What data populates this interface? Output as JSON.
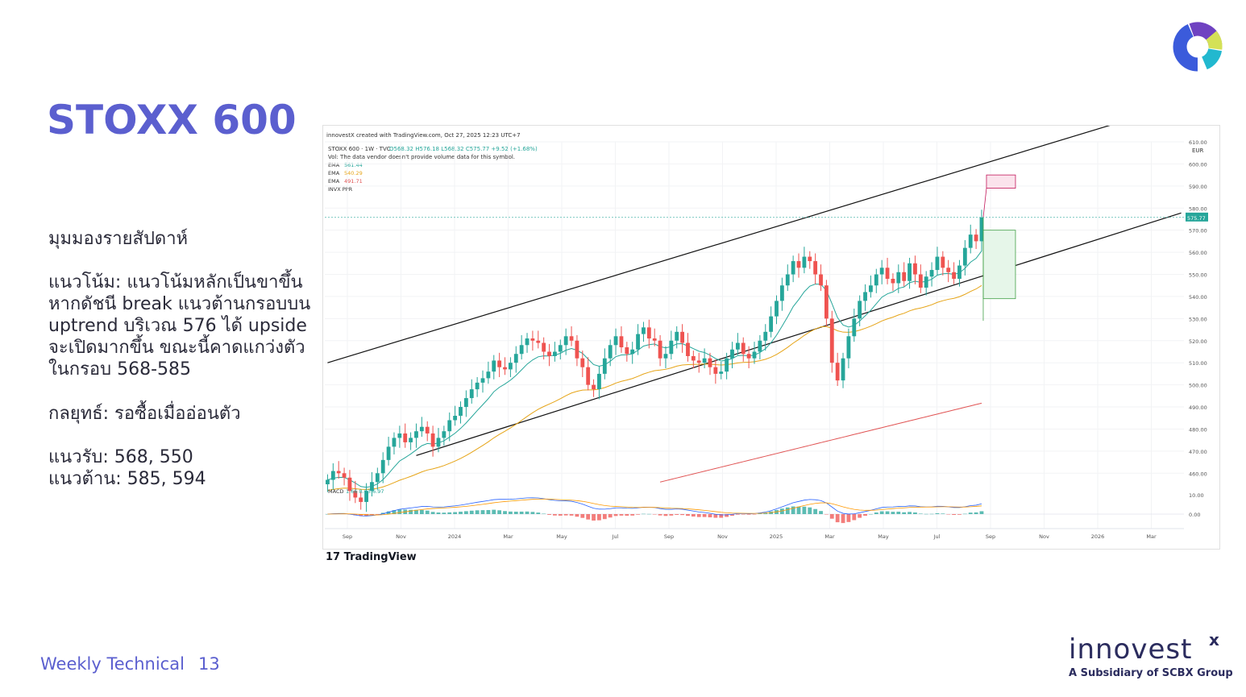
{
  "slide": {
    "title": "STOXX 600",
    "view_heading": "มุมมองรายสัปดาห์",
    "trend_text": "แนวโน้ม: แนวโน้มหลักเป็นขาขึ้น หากดัชนี break แนวต้านกรอบบน uptrend บริเวณ 576 ได้ upside จะเปิดมากขึ้น ขณะนี้คาดแกว่งตัวในกรอบ 568-585",
    "strategy_text": "กลยุทธ์: รอซื้อเมื่ออ่อนตัว",
    "support_text": "แนวรับ: 568, 550",
    "resistance_text": "แนวต้าน: 585, 594",
    "footer_title": "Weekly Technical",
    "footer_page": "13",
    "brand_name": "innovest",
    "brand_x": "x",
    "brand_sub": "A Subsidiary of SCBX Group",
    "tv_logo": "TradingView"
  },
  "colors": {
    "accent": "#5b5fcf",
    "bull": "#26a69a",
    "bear": "#ef5350",
    "ema_fast": "#26a69a",
    "ema_mid": "#e6a417",
    "ema_slow": "#e05353",
    "logo_blue": "#3b5bdb",
    "logo_purple": "#6f42c1",
    "logo_yellow": "#d4e157",
    "logo_cyan": "#22b8cf"
  },
  "chart_data": {
    "type": "candlestick",
    "header": "innovestX created with TradingView.com, Oct 27, 2025 12:23 UTC+7",
    "symbol_line": "STOXX 600 · 1W · TVC",
    "ohlc_text": "O568.32 H576.18 L568.32 C575.77 +9.52 (+1.68%)",
    "vol_note": "Vol: The data vendor doesn't provide volume data for this symbol.",
    "indicators": [
      {
        "name": "EMA",
        "value": "561.44",
        "color": "#26a69a"
      },
      {
        "name": "EMA",
        "value": "540.29",
        "color": "#e6a417"
      },
      {
        "name": "EMA",
        "value": "491.71",
        "color": "#e05353"
      },
      {
        "name": "INVX PPR",
        "value": "",
        "color": "#555555"
      }
    ],
    "currency": "EUR",
    "last_price": "575.77",
    "ylim": [
      455,
      610
    ],
    "y_ticks": [
      460,
      470,
      480,
      490,
      500,
      510,
      520,
      530,
      540,
      550,
      560,
      570,
      580,
      590,
      600,
      610
    ],
    "x_ticks": [
      "Sep",
      "Nov",
      "2024",
      "Mar",
      "May",
      "Jul",
      "Sep",
      "Nov",
      "2025",
      "Mar",
      "May",
      "Jul",
      "Sep",
      "Nov",
      "2026",
      "Mar"
    ],
    "macd": {
      "label": "MACD",
      "values": "1.66  8.63  6.97",
      "y_ticks": [
        "10.00",
        "0.00"
      ]
    },
    "channel": {
      "upper": [
        [
          0,
          510
        ],
        [
          109,
          593
        ]
      ],
      "lower": [
        [
          16,
          468
        ],
        [
          109,
          542
        ]
      ]
    },
    "projection": {
      "upper_box": [
        589,
        595
      ],
      "lower_box": [
        539,
        570
      ]
    },
    "closes": [
      457,
      461,
      460,
      458,
      452,
      449,
      447,
      452,
      456,
      460,
      466,
      472,
      476,
      478,
      474,
      476,
      479,
      481,
      478,
      472,
      476,
      479,
      484,
      486,
      490,
      494,
      498,
      501,
      503,
      506,
      511,
      508,
      507,
      510,
      514,
      518,
      521,
      520,
      519,
      515,
      513,
      515,
      518,
      522,
      520,
      512,
      508,
      500,
      498,
      505,
      512,
      518,
      522,
      517,
      514,
      516,
      523,
      526,
      521,
      520,
      512,
      514,
      520,
      524,
      519,
      513,
      511,
      510,
      512,
      508,
      505,
      506,
      512,
      516,
      519,
      514,
      512,
      515,
      520,
      524,
      531,
      538,
      545,
      550,
      556,
      553,
      558,
      556,
      550,
      545,
      530,
      510,
      502,
      512,
      522,
      530,
      538,
      542,
      545,
      550,
      553,
      548,
      546,
      551,
      547,
      555,
      550,
      544,
      549,
      552,
      558,
      553,
      551,
      548,
      554,
      562,
      568,
      565,
      575.77
    ]
  }
}
